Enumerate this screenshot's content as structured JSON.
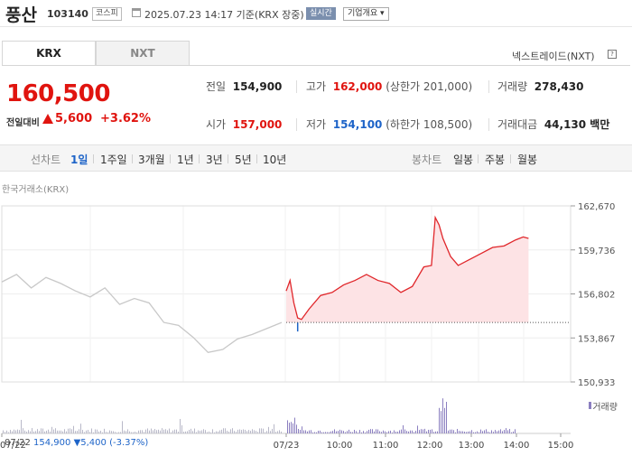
{
  "header": {
    "stock_name": "풍산",
    "stock_code": "103140",
    "market": "코스피",
    "datetime": "2025.07.23 14:17 기준(KRX 장중)",
    "realtime_badge": "실시간",
    "company_info_button": "기업개요"
  },
  "tabs": [
    {
      "label": "KRX",
      "active": true
    },
    {
      "label": "NXT",
      "active": false
    }
  ],
  "nxt_link": "넥스트레이드(NXT)",
  "nxt_help_icon": "?",
  "quote": {
    "price": "160,500",
    "change_label": "전일대비",
    "change_amount": "5,600",
    "change_rate": "+3.62%",
    "direction": "up"
  },
  "stats": {
    "prev_label": "전일",
    "prev": "154,900",
    "high_label": "고가",
    "high": "162,000",
    "upper_limit": "(상한가 201,000)",
    "volume_label": "거래량",
    "volume": "278,430",
    "open_label": "시가",
    "open": "157,000",
    "low_label": "저가",
    "low": "154,100",
    "lower_limit": "(하한가 108,500)",
    "amount_label": "거래대금",
    "amount": "44,130 백만"
  },
  "line_chart_bar": {
    "title": "선차트",
    "periods": [
      "1일",
      "1주일",
      "3개월",
      "1년",
      "3년",
      "5년",
      "10년"
    ],
    "selected": "1일"
  },
  "candle_chart_bar": {
    "title": "봉차트",
    "periods": [
      "일봉",
      "주봉",
      "월봉"
    ]
  },
  "chart_source": "한국거래소(KRX)",
  "volume_legend": "거래량",
  "footer": {
    "date": "07/22",
    "close": "154,900",
    "arrow": "▼",
    "change": "5,400",
    "rate": "(-3.37%)"
  },
  "colors": {
    "up": "#e0140f",
    "down": "#1e64c8",
    "prev_day_line": "#c8c8c8",
    "today_line": "#e0262a",
    "today_fill": "#fde3e5",
    "volume": "#8b7fc0",
    "selected_period": "#1e64c8"
  },
  "chart_data": {
    "type": "line",
    "y_ticks": [
      "162,670",
      "159,736",
      "156,802",
      "153,867",
      "150,933"
    ],
    "ylim": [
      150933,
      162670
    ],
    "x_ticks": [
      "07/22",
      "07/23",
      "10:00",
      "11:00",
      "12:00",
      "13:00",
      "14:00",
      "15:00"
    ],
    "reference_line": 154900,
    "series": [
      {
        "session": "07/22",
        "x": [
          "09:00",
          "09:20",
          "09:40",
          "10:00",
          "10:20",
          "10:40",
          "11:00",
          "11:20",
          "11:40",
          "12:00",
          "12:20",
          "12:40",
          "13:00",
          "13:20",
          "13:40",
          "14:00",
          "14:20",
          "14:40",
          "15:00",
          "15:20"
        ],
        "values": [
          157600,
          158100,
          157200,
          157900,
          157500,
          157000,
          156600,
          157200,
          156100,
          156500,
          156200,
          154900,
          154700,
          153900,
          152900,
          153100,
          153800,
          154100,
          154500,
          154900
        ]
      },
      {
        "session": "07/23",
        "x": [
          "09:00",
          "09:05",
          "09:10",
          "09:15",
          "09:20",
          "09:30",
          "09:45",
          "10:00",
          "10:15",
          "10:30",
          "10:45",
          "11:00",
          "11:15",
          "11:30",
          "11:45",
          "12:00",
          "12:10",
          "12:15",
          "12:20",
          "12:25",
          "12:35",
          "12:45",
          "13:00",
          "13:15",
          "13:30",
          "13:45",
          "14:00",
          "14:10",
          "14:17"
        ],
        "values": [
          157000,
          157700,
          156200,
          155200,
          155100,
          155800,
          156700,
          156900,
          157400,
          157700,
          158100,
          157700,
          157500,
          156900,
          157300,
          158600,
          158700,
          161900,
          161400,
          160500,
          159300,
          158700,
          159100,
          159500,
          159900,
          160000,
          160400,
          160600,
          160500
        ]
      }
    ],
    "volume_bars": "relative intraday volume (07/22 low, 07/23 spike ~12:20)"
  }
}
